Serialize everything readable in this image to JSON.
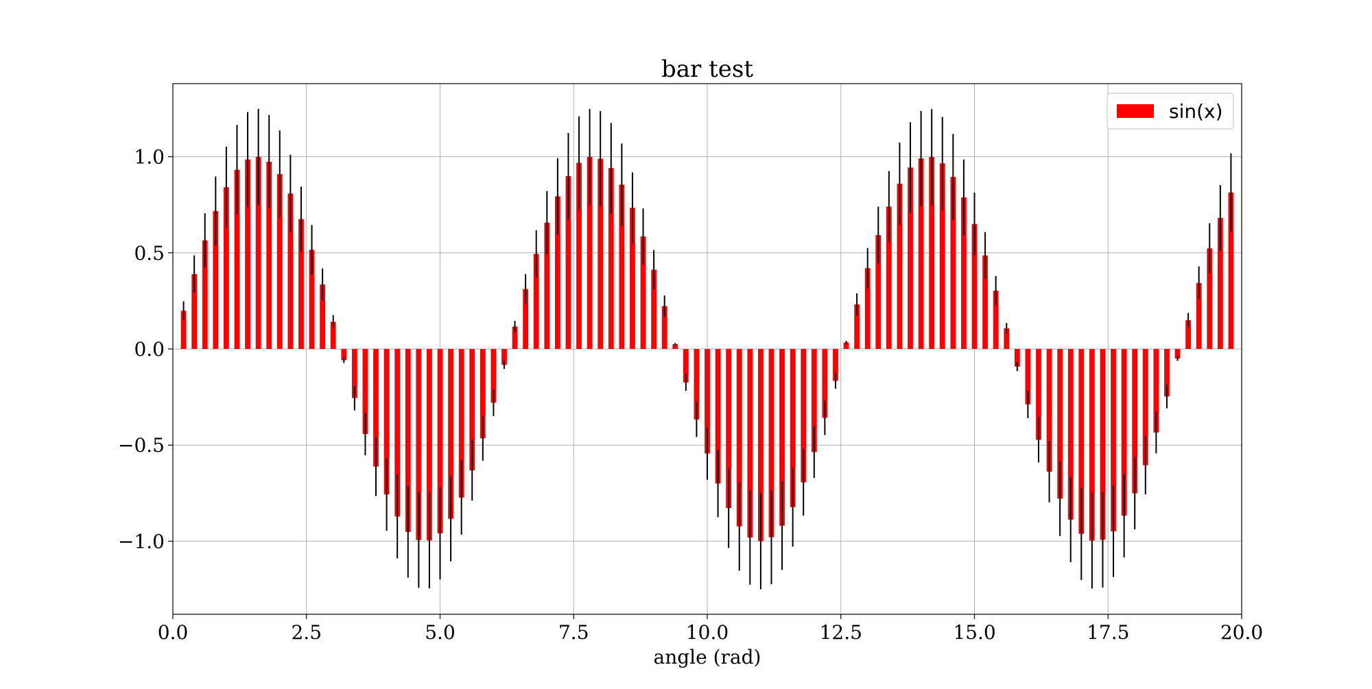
{
  "chart_data": {
    "type": "bar",
    "title": "bar test",
    "xlabel": "angle (rad)",
    "ylabel": "",
    "xlim": [
      0.0,
      20.0
    ],
    "ylim": [
      -1.38,
      1.38
    ],
    "grid": true,
    "bar_color": "#ff0000",
    "errorbar_color": "#000000",
    "x_ticks": [
      0.0,
      2.5,
      5.0,
      7.5,
      10.0,
      12.5,
      15.0,
      17.5,
      20.0
    ],
    "x_tick_labels": [
      "0.0",
      "2.5",
      "5.0",
      "7.5",
      "10.0",
      "12.5",
      "15.0",
      "17.5",
      "20.0"
    ],
    "y_ticks": [
      1.0,
      0.5,
      0.0,
      -0.5,
      -1.0
    ],
    "y_tick_labels": [
      "1.0",
      "0.5",
      "0.0",
      "−0.5",
      "−1.0"
    ],
    "legend": {
      "location": "top-right",
      "entries": [
        {
          "label": "sin(x)",
          "color": "#ff0000"
        }
      ]
    },
    "series": [
      {
        "name": "sin(x)",
        "x_start": 0.2,
        "x_step": 0.2,
        "count": 99,
        "bar_width": 0.1,
        "values": "sin(x)",
        "yerr": "0.25*|sin(x)|"
      }
    ]
  }
}
